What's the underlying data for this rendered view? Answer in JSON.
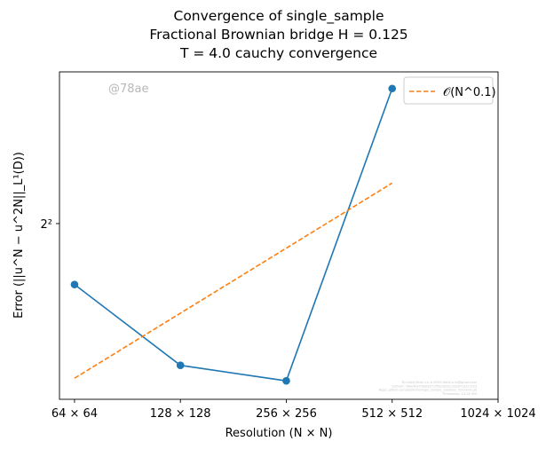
{
  "chart_data": {
    "type": "line",
    "title_lines": [
      "Convergence of single_sample",
      "Fractional Brownian bridge H = 0.125",
      "T = 4.0 cauchy convergence"
    ],
    "xlabel": "Resolution (N × N)",
    "ylabel": "Error (||u^N − u^2N||_L¹(D))",
    "x_scale": "log2",
    "y_scale": "log2",
    "x_tick_values": [
      64,
      128,
      256,
      512,
      1024
    ],
    "x_tick_labels": [
      "64 × 64",
      "128 × 128",
      "256 × 256",
      "512 × 512",
      "1024 × 1024"
    ],
    "y_tick_values": [
      4
    ],
    "y_tick_labels": [
      "2²"
    ],
    "xlim": [
      58,
      1024
    ],
    "ylim": [
      3.27,
      4.76
    ],
    "grid": false,
    "legend_position": "top-right",
    "series": [
      {
        "name": "",
        "color": "#1f77b4",
        "style": "solid",
        "marker": "circle",
        "x": [
          64,
          128,
          256,
          512
        ],
        "y": [
          3.73,
          3.4,
          3.34,
          4.67
        ]
      },
      {
        "name": "𝒪(N^0.1)",
        "color": "#ff7f0e",
        "style": "dashed",
        "marker": "none",
        "x": [
          64,
          512
        ],
        "y": [
          3.35,
          4.19
        ]
      }
    ],
    "watermark": "@78ae",
    "footnote_lines": [
      "By Distill Brian Lin & KTOS distill-a.lin@gmail.com",
      "Commit: 78ae4b3f7ba8327c5f5ec62bcc2b2871a5c7203",
      "Repo: github.com/distill-lin/single_sample_solutions_functions.git",
      "Timestamp: 14:14:390"
    ]
  }
}
